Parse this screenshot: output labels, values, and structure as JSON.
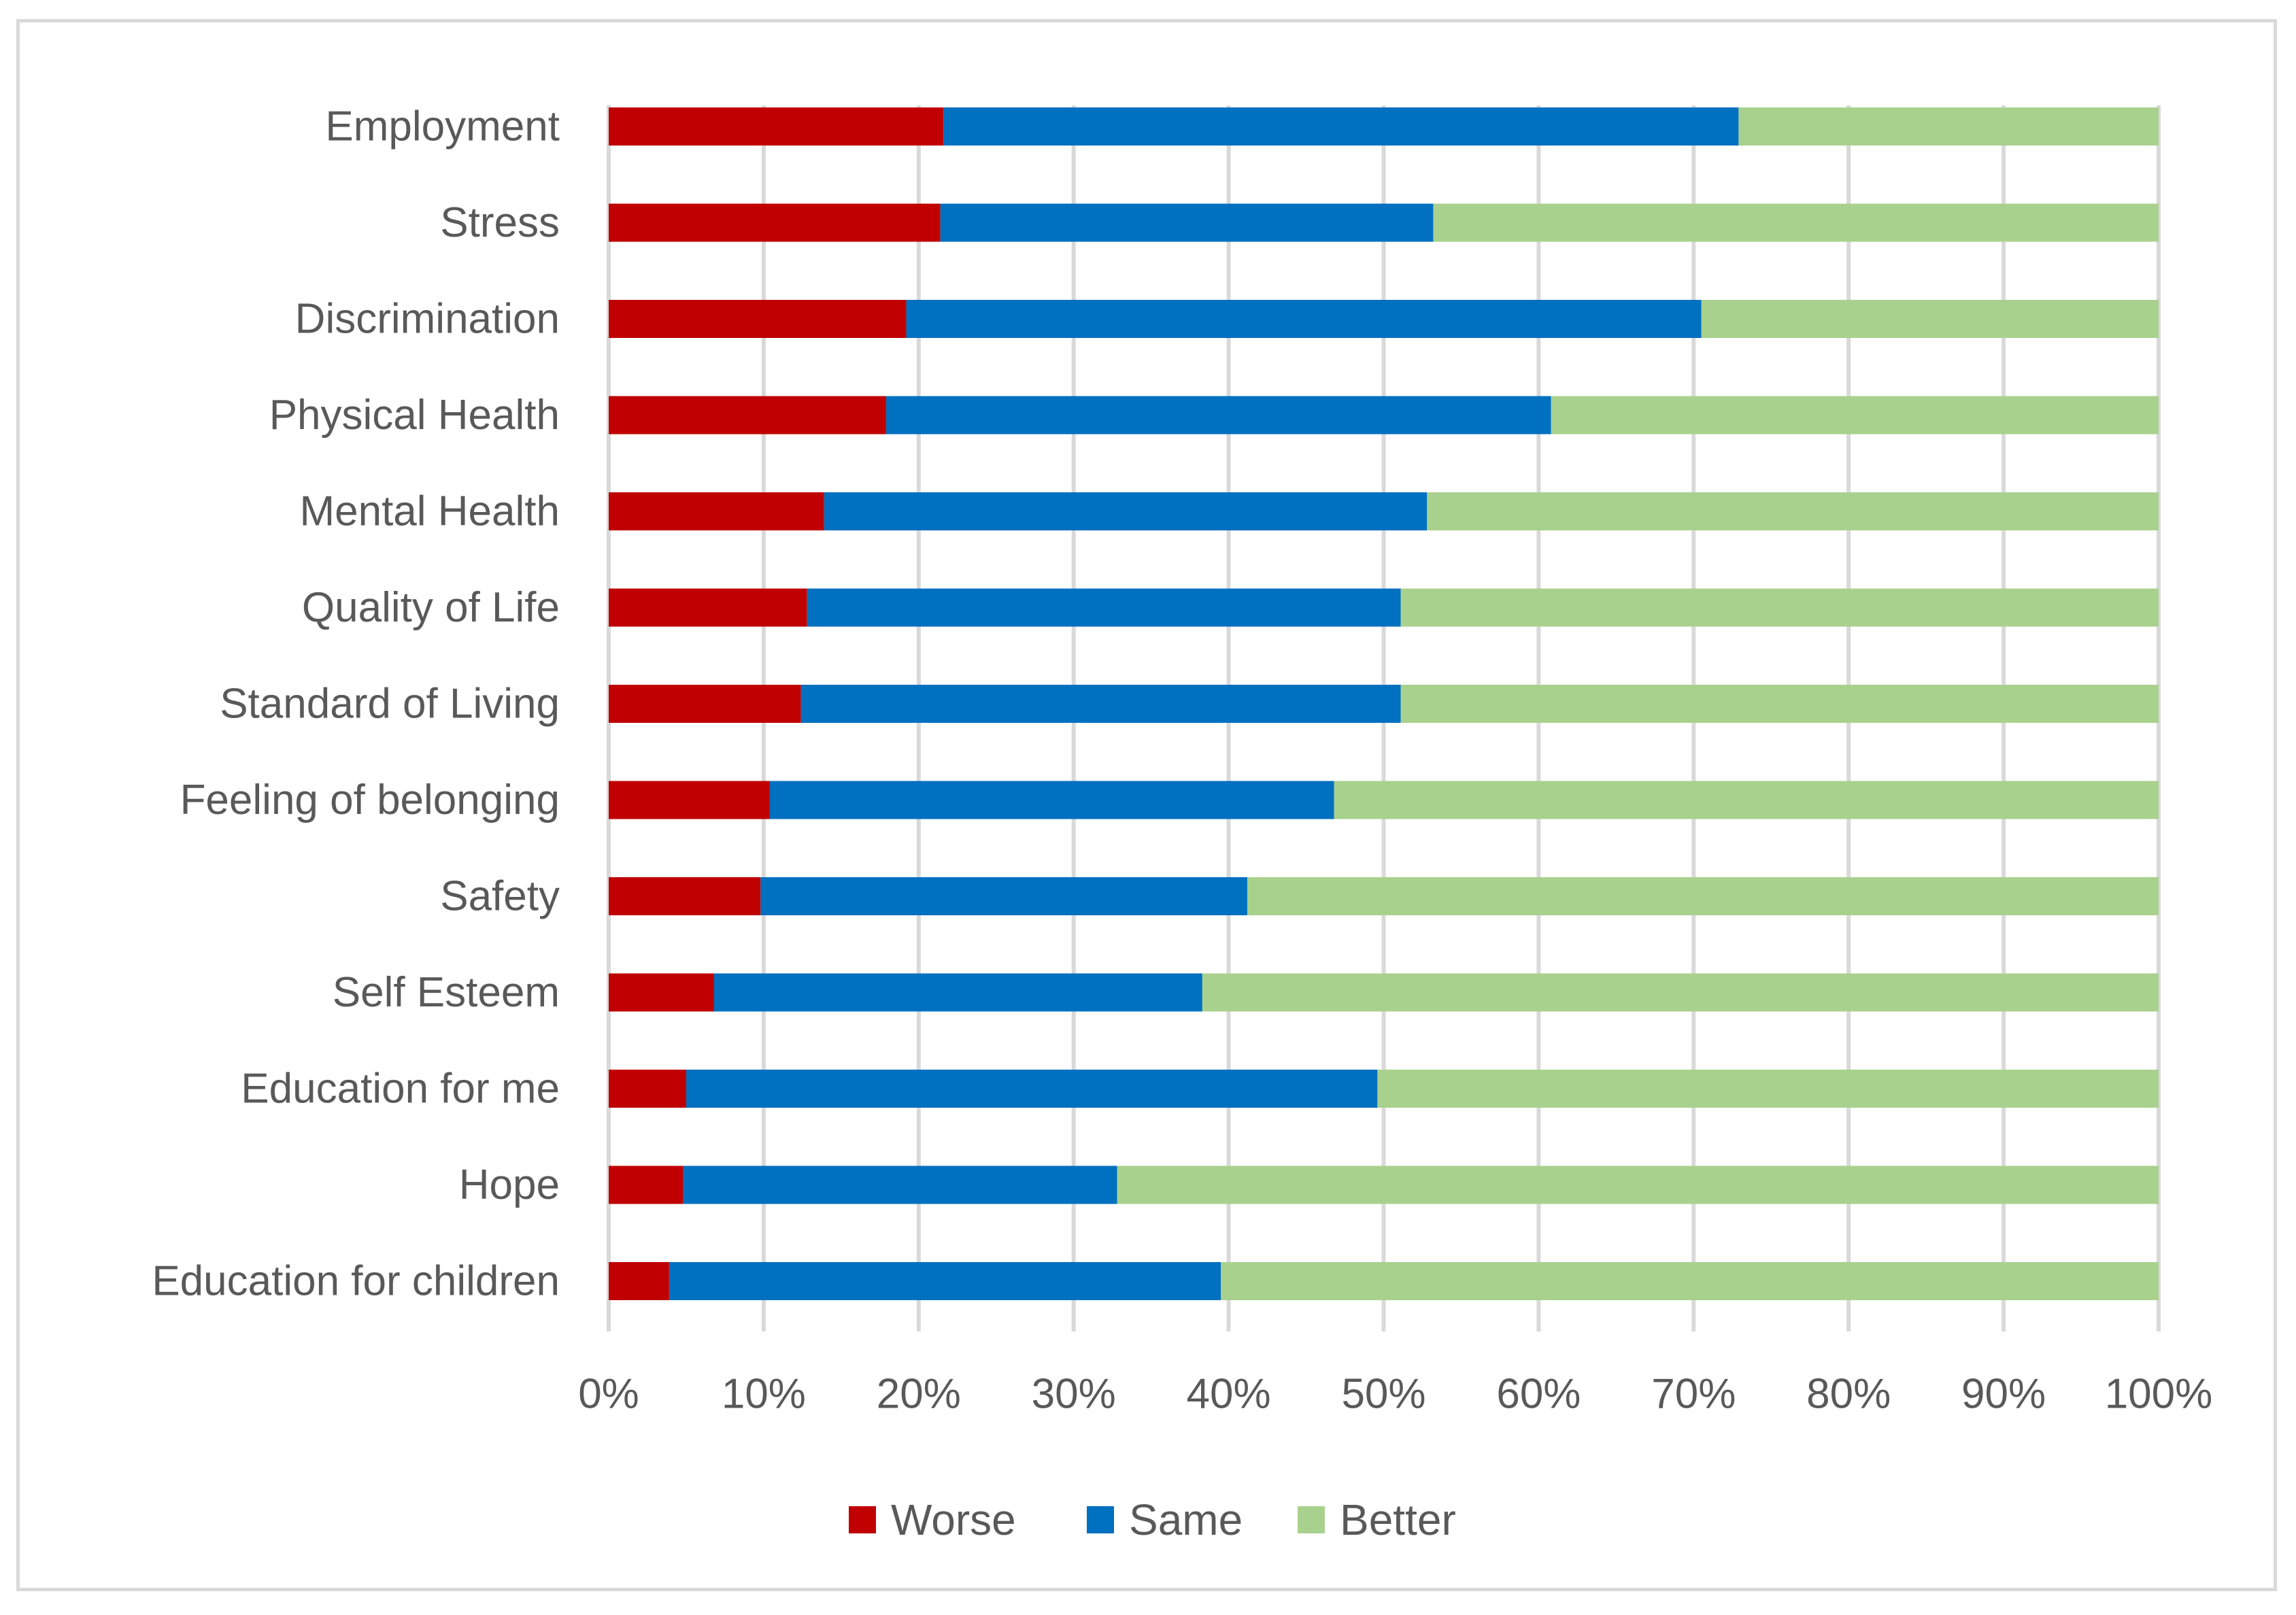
{
  "chart_data": {
    "type": "bar",
    "orientation": "horizontal",
    "stacked": "percent",
    "title": "",
    "xlabel": "",
    "ylabel": "",
    "xlim": [
      0,
      100
    ],
    "tick_values": [
      0,
      10,
      20,
      30,
      40,
      50,
      60,
      70,
      80,
      90,
      100
    ],
    "tick_labels": [
      "0%",
      "10%",
      "20%",
      "30%",
      "40%",
      "50%",
      "60%",
      "70%",
      "80%",
      "90%",
      "100%"
    ],
    "grid": true,
    "legend_position": "bottom",
    "categories": [
      "Employment",
      "Stress",
      "Discrimination",
      "Physical Health",
      "Mental Health",
      "Quality of Life",
      "Standard of Living",
      "Feeling of belonging",
      "Safety",
      "Self Esteem",
      "Education for me",
      "Hope",
      "Education for children"
    ],
    "series": [
      {
        "name": "Worse",
        "color": "#c00000",
        "values": [
          21.6,
          21.4,
          19.2,
          17.9,
          13.9,
          12.8,
          12.4,
          10.4,
          9.8,
          6.8,
          5.0,
          4.8,
          3.9
        ]
      },
      {
        "name": "Same",
        "color": "#0070c0",
        "values": [
          51.3,
          31.8,
          51.3,
          42.9,
          38.9,
          38.3,
          38.7,
          36.4,
          31.4,
          31.5,
          44.6,
          28.0,
          35.6
        ]
      },
      {
        "name": "Better",
        "color": "#a9d18e",
        "values": [
          27.1,
          46.8,
          29.5,
          39.2,
          47.2,
          48.9,
          48.9,
          53.2,
          58.8,
          61.7,
          50.4,
          67.2,
          60.5
        ]
      }
    ]
  }
}
